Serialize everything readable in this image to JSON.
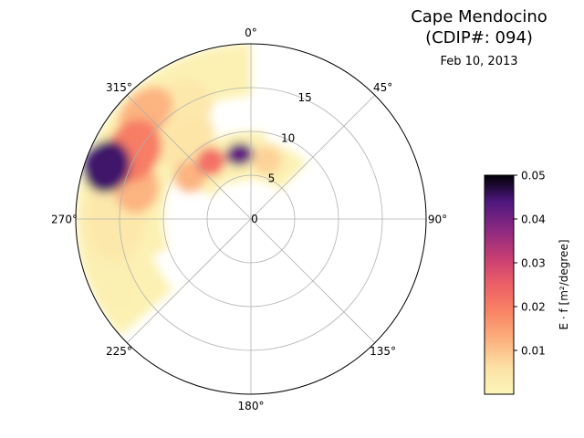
{
  "header": {
    "title_line1": "Cape Mendocino",
    "title_line2": "(CDIP#: 094)",
    "date": "Feb 10, 2013"
  },
  "chart_data": {
    "type": "heatmap",
    "projection": "polar",
    "title": "Cape Mendocino (CDIP#: 094)",
    "subtitle": "Feb 10, 2013",
    "theta_direction": "clockwise",
    "theta_zero": "north",
    "theta_ticks": [
      "0°",
      "45°",
      "90°",
      "135°",
      "180°",
      "225°",
      "270°",
      "315°"
    ],
    "theta_tick_values": [
      0,
      45,
      90,
      135,
      180,
      225,
      270,
      315
    ],
    "r_ticks": [
      "0",
      "5",
      "10",
      "15"
    ],
    "r_tick_values": [
      0,
      5,
      10,
      15
    ],
    "r_lim": [
      0,
      20
    ],
    "r_label_angle": 22.5,
    "grid": true,
    "colormap": "magma_r",
    "colorbar": {
      "label": "E · f [m²/degree]",
      "lim": [
        0.0,
        0.05
      ],
      "ticks": [
        "0.01",
        "0.02",
        "0.03",
        "0.04",
        "0.05"
      ],
      "tick_values": [
        0.01,
        0.02,
        0.03,
        0.04,
        0.05
      ],
      "placement": "right"
    },
    "energy_blobs": [
      {
        "theta": 290,
        "r": 17.5,
        "dtheta": 10,
        "dr": 2.6,
        "value": 0.045
      },
      {
        "theta": 300,
        "r": 15.5,
        "dtheta": 14,
        "dr": 3.0,
        "value": 0.02
      },
      {
        "theta": 285,
        "r": 13.5,
        "dtheta": 12,
        "dr": 2.5,
        "value": 0.012
      },
      {
        "theta": 315,
        "r": 17.0,
        "dtheta": 12,
        "dr": 2.5,
        "value": 0.012
      },
      {
        "theta": 330,
        "r": 15.0,
        "dtheta": 12,
        "dr": 3.0,
        "value": 0.004
      },
      {
        "theta": 350,
        "r": 7.5,
        "dtheta": 12,
        "dr": 1.3,
        "value": 0.042
      },
      {
        "theta": 325,
        "r": 8.0,
        "dtheta": 12,
        "dr": 1.6,
        "value": 0.022
      },
      {
        "theta": 305,
        "r": 8.5,
        "dtheta": 12,
        "dr": 1.8,
        "value": 0.012
      },
      {
        "theta": 15,
        "r": 7.0,
        "dtheta": 14,
        "dr": 1.6,
        "value": 0.008
      },
      {
        "theta": 270,
        "r": 15.5,
        "dtheta": 18,
        "dr": 3.5,
        "value": 0.004
      },
      {
        "theta": 250,
        "r": 17.0,
        "dtheta": 16,
        "dr": 2.5,
        "value": 0.002
      },
      {
        "theta": 320,
        "r": 11.5,
        "dtheta": 18,
        "dr": 2.5,
        "value": 0.005
      }
    ],
    "wave_energy_region": {
      "theta_range": [
        230,
        45
      ],
      "r_range": [
        0,
        20
      ],
      "background_value": 0.0015
    }
  }
}
